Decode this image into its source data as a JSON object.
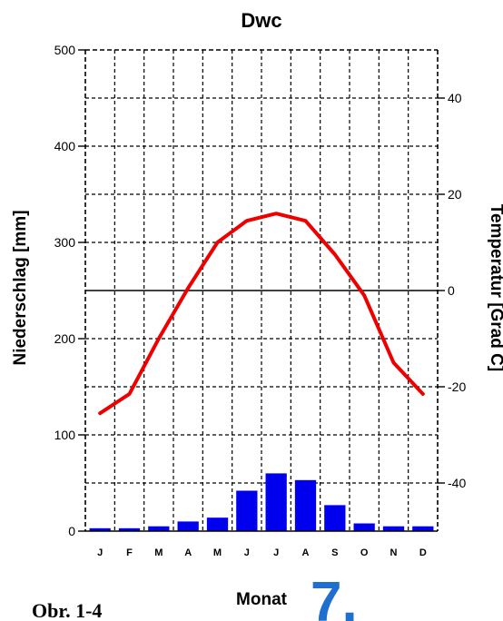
{
  "figure_label": "Obr. 1-4",
  "figure_number": "7.",
  "colors": {
    "precip_bar": "#0000ee",
    "temperature_line": "#ee0000",
    "number": "#1f6fd0"
  },
  "chart_data": {
    "type": "bar",
    "title": "Dwc",
    "xlabel": "Monat",
    "ylabel": "Niederschlag [mm]",
    "y2label": "Temperatur [Grad C]",
    "categories": [
      "J",
      "F",
      "M",
      "A",
      "M",
      "J",
      "J",
      "A",
      "S",
      "O",
      "N",
      "D"
    ],
    "ylim": [
      0,
      500
    ],
    "yticks": [
      0,
      100,
      200,
      300,
      400,
      500
    ],
    "y2lim": [
      -50,
      50
    ],
    "y2ticks": [
      -40,
      -20,
      0,
      20,
      40
    ],
    "grid": true,
    "series": [
      {
        "type": "bar",
        "axis": "left",
        "values": [
          3,
          3,
          5,
          10,
          14,
          42,
          60,
          53,
          27,
          8,
          5,
          5
        ]
      },
      {
        "type": "line",
        "axis": "right",
        "values": [
          -25.5,
          -21.5,
          -10,
          0.5,
          10,
          14.5,
          16,
          14.5,
          7.5,
          -1,
          -15,
          -21.5
        ]
      }
    ]
  }
}
